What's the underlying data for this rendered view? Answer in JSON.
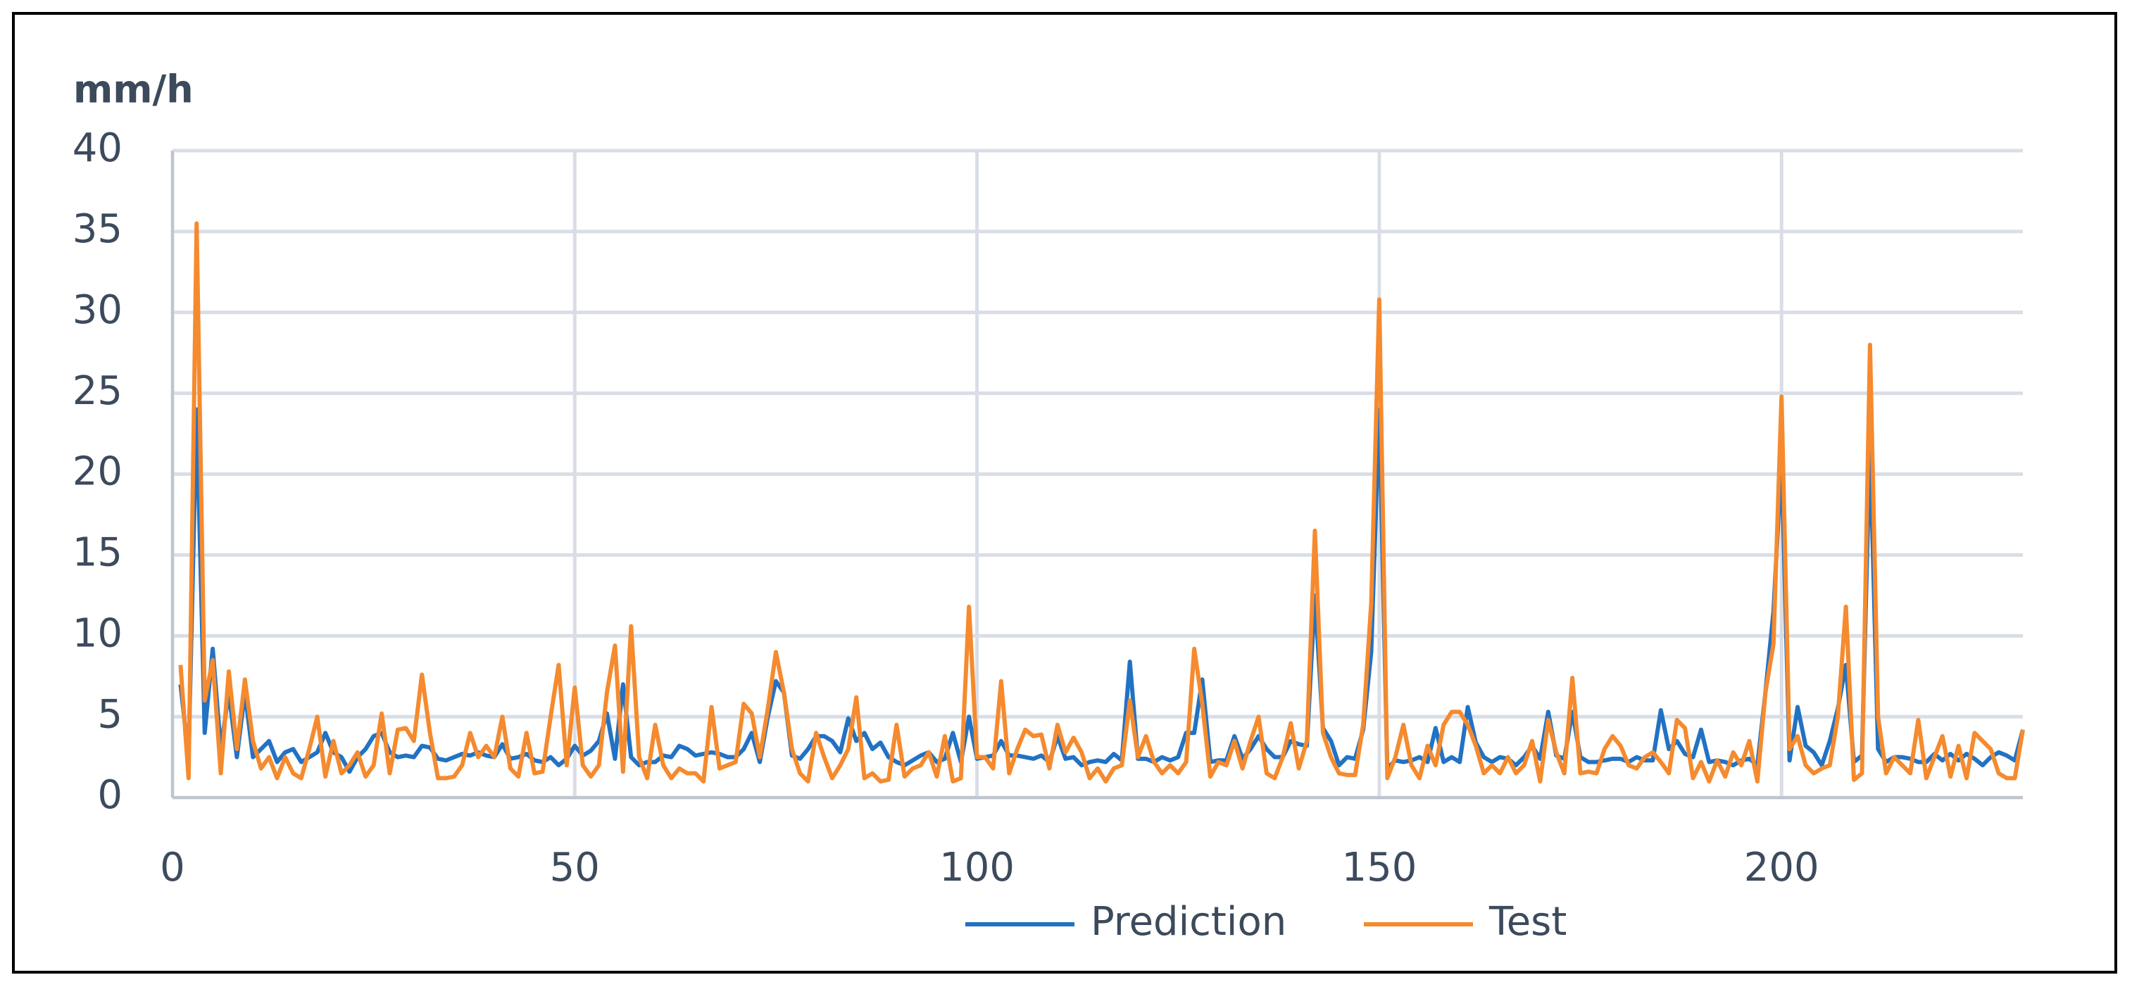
{
  "chart_data": {
    "type": "line",
    "y_label": "mm/h",
    "x": [
      1,
      2,
      3,
      4,
      5,
      6,
      7,
      8,
      9,
      10,
      11,
      12,
      13,
      14,
      15,
      16,
      17,
      18,
      19,
      20,
      21,
      22,
      23,
      24,
      25,
      26,
      27,
      28,
      29,
      30,
      31,
      32,
      33,
      34,
      35,
      36,
      37,
      38,
      39,
      40,
      41,
      42,
      43,
      44,
      45,
      46,
      47,
      48,
      49,
      50,
      51,
      52,
      53,
      54,
      55,
      56,
      57,
      58,
      59,
      60,
      61,
      62,
      63,
      64,
      65,
      66,
      67,
      68,
      69,
      70,
      71,
      72,
      73,
      74,
      75,
      76,
      77,
      78,
      79,
      80,
      81,
      82,
      83,
      84,
      85,
      86,
      87,
      88,
      89,
      90,
      91,
      92,
      93,
      94,
      95,
      96,
      97,
      98,
      99,
      100,
      101,
      102,
      103,
      104,
      105,
      106,
      107,
      108,
      109,
      110,
      111,
      112,
      113,
      114,
      115,
      116,
      117,
      118,
      119,
      120,
      121,
      122,
      123,
      124,
      125,
      126,
      127,
      128,
      129,
      130,
      131,
      132,
      133,
      134,
      135,
      136,
      137,
      138,
      139,
      140,
      141,
      142,
      143,
      144,
      145,
      146,
      147,
      148,
      149,
      150,
      151,
      152,
      153,
      154,
      155,
      156,
      157,
      158,
      159,
      160,
      161,
      162,
      163,
      164,
      165,
      166,
      167,
      168,
      169,
      170,
      171,
      172,
      173,
      174,
      175,
      176,
      177,
      178,
      179,
      180,
      181,
      182,
      183,
      184,
      185,
      186,
      187,
      188,
      189,
      190,
      191,
      192,
      193,
      194,
      195,
      196,
      197,
      198,
      199,
      200,
      201,
      202,
      203,
      204,
      205,
      206,
      207,
      208,
      209,
      210,
      211,
      212,
      213,
      214,
      215,
      216,
      217,
      218,
      219,
      220,
      221,
      222,
      223,
      224,
      225,
      226,
      227,
      228,
      229,
      230
    ],
    "series": [
      {
        "name": "Prediction",
        "color": "#2272c3",
        "values": [
          7,
          2.5,
          24,
          4,
          9.2,
          3,
          6.5,
          2.5,
          6.5,
          2.5,
          3,
          3.5,
          2.2,
          2.8,
          3,
          2.2,
          2.5,
          2.8,
          4,
          2.8,
          2.5,
          1.6,
          2.5,
          3,
          3.8,
          4,
          2.8,
          2.5,
          2.6,
          2.5,
          3.2,
          3.1,
          2.4,
          2.3,
          2.5,
          2.7,
          2.6,
          2.8,
          2.6,
          2.5,
          3.3,
          2.4,
          2.5,
          2.7,
          2.3,
          2.2,
          2.5,
          2,
          2.4,
          3.2,
          2.6,
          2.9,
          3.5,
          5.2,
          2.4,
          7,
          2.5,
          2,
          2.2,
          2.2,
          2.6,
          2.5,
          3.2,
          3,
          2.6,
          2.7,
          2.8,
          2.7,
          2.5,
          2.5,
          3,
          4,
          2.2,
          5,
          7.2,
          6.5,
          2.6,
          2.4,
          3,
          3.8,
          3.8,
          3.5,
          2.8,
          4.9,
          3.5,
          4,
          3,
          3.4,
          2.5,
          2.2,
          2,
          2.3,
          2.6,
          2.8,
          2.2,
          2.4,
          4,
          2.2,
          5,
          2.4,
          2.5,
          2.6,
          3.5,
          2.6,
          2.6,
          2.5,
          2.4,
          2.6,
          2.2,
          3.8,
          2.4,
          2.5,
          2,
          2.2,
          2.3,
          2.2,
          2.7,
          2.3,
          8.4,
          2.4,
          2.4,
          2.2,
          2.5,
          2.3,
          2.5,
          4,
          4,
          7.3,
          2.2,
          2.3,
          2.3,
          3.8,
          2.4,
          3,
          3.8,
          3,
          2.5,
          2.5,
          3.5,
          3.3,
          3.2,
          12.5,
          4.3,
          3.5,
          2,
          2.5,
          2.4,
          4.2,
          9,
          24,
          1.8,
          2.3,
          2.2,
          2.3,
          2.5,
          2.2,
          4.3,
          2.2,
          2.5,
          2.2,
          5.6,
          3.4,
          2.5,
          2.2,
          2.5,
          2.4,
          2,
          2.5,
          3.2,
          2.4,
          5.3,
          2.6,
          2.4,
          5.3,
          2.5,
          2.2,
          2.2,
          2.3,
          2.4,
          2.4,
          2.2,
          2.5,
          2.3,
          2.3,
          5.4,
          3,
          3.5,
          2.7,
          2.5,
          4.2,
          2.2,
          2.3,
          2.2,
          2,
          2.3,
          2.4,
          2,
          6.5,
          11.5,
          21,
          2.3,
          5.6,
          3.2,
          2.8,
          2,
          3.5,
          5.5,
          8.2,
          2.2,
          2.6,
          22,
          3,
          2.2,
          2.5,
          2.5,
          2.4,
          2.2,
          2.2,
          2.7,
          2.3,
          2.7,
          2.3,
          2.7,
          2.4,
          2,
          2.5,
          2.8,
          2.6,
          2.3,
          4.2
        ]
      },
      {
        "name": "Test",
        "color": "#f58a2e",
        "values": [
          8.2,
          1.2,
          35.5,
          6,
          8.5,
          1.5,
          7.8,
          3,
          7.3,
          3.5,
          1.8,
          2.5,
          1.2,
          2.5,
          1.5,
          1.2,
          3,
          5,
          1.3,
          3.5,
          1.5,
          2,
          2.8,
          1.3,
          2,
          5.2,
          1.5,
          4.2,
          4.3,
          3.5,
          7.6,
          4,
          1.2,
          1.2,
          1.3,
          2,
          4,
          2.5,
          3.2,
          2.5,
          5,
          1.8,
          1.3,
          4,
          1.5,
          1.6,
          5,
          8.2,
          2,
          6.8,
          2,
          1.3,
          2,
          6.5,
          9.4,
          1.6,
          10.6,
          2.5,
          1.2,
          4.5,
          2,
          1.2,
          1.8,
          1.5,
          1.5,
          1,
          5.6,
          1.8,
          2,
          2.2,
          5.8,
          5.2,
          2.5,
          5.5,
          9,
          6.5,
          3,
          1.5,
          1,
          4,
          2.5,
          1.2,
          2,
          3,
          6.2,
          1.2,
          1.5,
          1,
          1.1,
          4.5,
          1.3,
          1.8,
          2,
          2.8,
          1.3,
          3.8,
          1,
          1.2,
          11.8,
          2.5,
          2.5,
          1.8,
          7.2,
          1.5,
          3,
          4.2,
          3.8,
          3.9,
          1.8,
          4.5,
          2.8,
          3.7,
          2.8,
          1.2,
          1.8,
          1,
          1.8,
          2,
          6,
          2.5,
          3.8,
          2.2,
          1.5,
          2,
          1.5,
          2.2,
          9.2,
          5.8,
          1.3,
          2.2,
          2,
          3.5,
          1.8,
          3.5,
          5,
          1.5,
          1.2,
          2.5,
          4.6,
          1.8,
          3.5,
          16.5,
          4,
          2.5,
          1.5,
          1.4,
          1.4,
          4.5,
          12,
          30.8,
          1.2,
          2.5,
          4.5,
          2,
          1.2,
          3.2,
          2,
          4.5,
          5.3,
          5.3,
          4.5,
          3.2,
          1.5,
          2,
          1.5,
          2.5,
          1.5,
          2,
          3.5,
          1,
          4.8,
          2.8,
          1.5,
          7.4,
          1.5,
          1.6,
          1.5,
          3,
          3.8,
          3.2,
          2,
          1.8,
          2.5,
          2.8,
          2.2,
          1.5,
          4.8,
          4.3,
          1.2,
          2.2,
          1,
          2.3,
          1.3,
          2.8,
          2,
          3.5,
          1,
          6.5,
          9.5,
          24.8,
          3,
          3.8,
          2,
          1.5,
          1.8,
          2,
          5,
          11.8,
          1.1,
          1.5,
          28,
          5,
          1.5,
          2.5,
          2,
          1.5,
          4.8,
          1.2,
          2.5,
          3.8,
          1.3,
          3.2,
          1.2,
          4,
          3.5,
          3,
          1.5,
          1.2,
          1.2,
          4.2
        ]
      }
    ],
    "xlim": [
      0,
      230
    ],
    "xticks": [
      0,
      50,
      100,
      150,
      200
    ],
    "ylim": [
      0,
      40
    ],
    "yticks": [
      0,
      5,
      10,
      15,
      20,
      25,
      30,
      35,
      40
    ],
    "grid": true,
    "legend": "bottom"
  }
}
